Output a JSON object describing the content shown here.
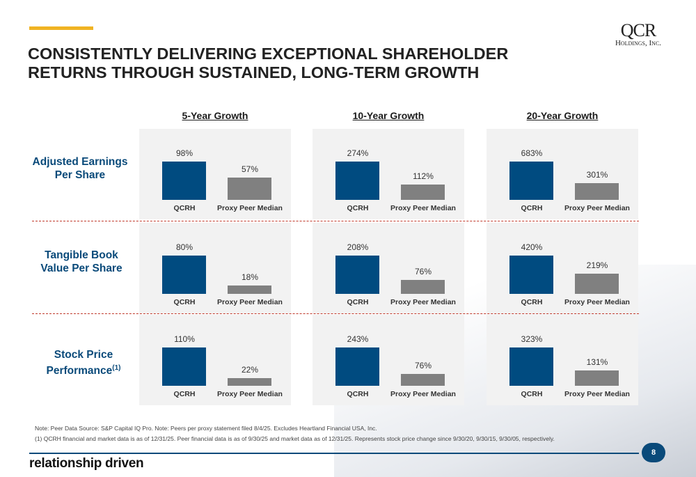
{
  "title_line1": "CONSISTENTLY DELIVERING EXCEPTIONAL SHAREHOLDER",
  "title_line2": "RETURNS THROUGH SUSTAINED, LONG-TERM GROWTH",
  "logo": {
    "line1": "QCR",
    "line2": "Holdings, Inc."
  },
  "columns": [
    "5-Year Growth",
    "10-Year Growth",
    "20-Year Growth"
  ],
  "rows": [
    "Adjusted Earnings Per Share",
    "Tangible Book Value Per Share",
    "Stock Price Performance"
  ],
  "row3_sup": "(1)",
  "colors": {
    "qcrh": "#004b80",
    "peer": "#808080",
    "accent": "#f0b323"
  },
  "chart_data": {
    "type": "bar",
    "categories": [
      "QCRH",
      "Proxy Peer Median"
    ],
    "unit": "%",
    "charts": [
      {
        "row": "Adjusted Earnings Per Share",
        "column": "5-Year Growth",
        "values": [
          98,
          57
        ]
      },
      {
        "row": "Adjusted Earnings Per Share",
        "column": "10-Year Growth",
        "values": [
          274,
          112
        ]
      },
      {
        "row": "Adjusted Earnings Per Share",
        "column": "20-Year Growth",
        "values": [
          683,
          301
        ]
      },
      {
        "row": "Tangible Book Value Per Share",
        "column": "5-Year Growth",
        "values": [
          80,
          18
        ]
      },
      {
        "row": "Tangible Book Value Per Share",
        "column": "10-Year Growth",
        "values": [
          208,
          76
        ]
      },
      {
        "row": "Tangible Book Value Per Share",
        "column": "20-Year Growth",
        "values": [
          420,
          219
        ]
      },
      {
        "row": "Stock Price Performance",
        "column": "5-Year Growth",
        "values": [
          110,
          22
        ]
      },
      {
        "row": "Stock Price Performance",
        "column": "10-Year Growth",
        "values": [
          243,
          76
        ]
      },
      {
        "row": "Stock Price Performance",
        "column": "20-Year Growth",
        "values": [
          323,
          131
        ]
      }
    ]
  },
  "notes": {
    "note": "Note: Peer Data Source: S&P Capital IQ Pro. Note: Peers per proxy statement filed 8/4/25. Excludes Heartland Financial USA, Inc.",
    "footnote": "(1)    QCRH financial and market data is as of 12/31/25. Peer financial data is as of 9/30/25 and market data as of 12/31/25. Represents stock price change since 9/30/20, 9/30/15, 9/30/05, respectively."
  },
  "tagline": "relationship driven",
  "page_number": "8"
}
